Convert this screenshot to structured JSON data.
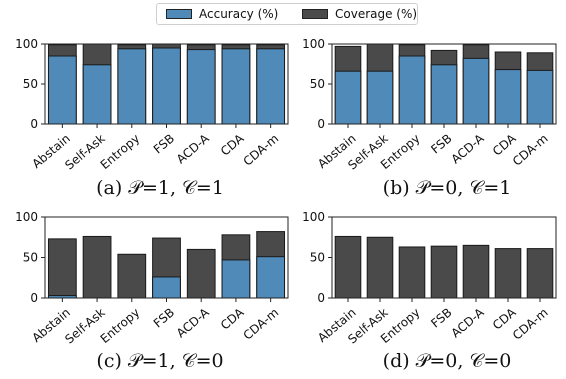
{
  "legend": {
    "items": [
      {
        "label": "Accuracy (%)",
        "color": "#4f8ab8"
      },
      {
        "label": "Coverage (%)",
        "color": "#4a4a4a"
      }
    ]
  },
  "colors": {
    "accuracy": "#4f8ab8",
    "coverage": "#4a4a4a",
    "edge": "#1a1a1a"
  },
  "chart_data": [
    {
      "type": "bar",
      "caption": "(a) 𝒫=1, 𝒞=1",
      "categories": [
        "Abstain",
        "Self-Ask",
        "Entropy",
        "FSB",
        "ACD-A",
        "CDA",
        "CDA-m"
      ],
      "series": [
        {
          "name": "Accuracy (%)",
          "values": [
            85,
            74,
            94,
            95,
            93,
            94,
            94
          ]
        },
        {
          "name": "Coverage (%)",
          "values": [
            99,
            100,
            99,
            100,
            99,
            99,
            99
          ]
        }
      ],
      "ylim": [
        0,
        100
      ],
      "yticks": [
        0,
        50,
        100
      ],
      "grid": false
    },
    {
      "type": "bar",
      "caption": "(b) 𝒫=0, 𝒞=1",
      "categories": [
        "Abstain",
        "Self-Ask",
        "Entropy",
        "FSB",
        "ACD-A",
        "CDA",
        "CDA-m"
      ],
      "series": [
        {
          "name": "Accuracy (%)",
          "values": [
            66,
            66,
            85,
            74,
            82,
            68,
            67
          ]
        },
        {
          "name": "Coverage (%)",
          "values": [
            97,
            100,
            99,
            92,
            99,
            90,
            89
          ]
        }
      ],
      "ylim": [
        0,
        100
      ],
      "yticks": [
        0,
        50,
        100
      ],
      "grid": false
    },
    {
      "type": "bar",
      "caption": "(c) 𝒫=1, 𝒞=0",
      "categories": [
        "Abstain",
        "Self-Ask",
        "Entropy",
        "FSB",
        "ACD-A",
        "CDA",
        "CDA-m"
      ],
      "series": [
        {
          "name": "Accuracy (%)",
          "values": [
            3,
            0,
            0,
            26,
            0,
            47,
            51
          ]
        },
        {
          "name": "Coverage (%)",
          "values": [
            73,
            76,
            54,
            74,
            60,
            78,
            82
          ]
        }
      ],
      "ylim": [
        0,
        100
      ],
      "yticks": [
        0,
        50,
        100
      ],
      "grid": false
    },
    {
      "type": "bar",
      "caption": "(d) 𝒫=0, 𝒞=0",
      "categories": [
        "Abstain",
        "Self-Ask",
        "Entropy",
        "FSB",
        "ACD-A",
        "CDA",
        "CDA-m"
      ],
      "series": [
        {
          "name": "Accuracy (%)",
          "values": [
            0,
            0,
            0,
            0,
            0,
            0,
            0
          ]
        },
        {
          "name": "Coverage (%)",
          "values": [
            76,
            75,
            63,
            64,
            65,
            61,
            61
          ]
        }
      ],
      "ylim": [
        0,
        100
      ],
      "yticks": [
        0,
        50,
        100
      ],
      "grid": false
    }
  ]
}
